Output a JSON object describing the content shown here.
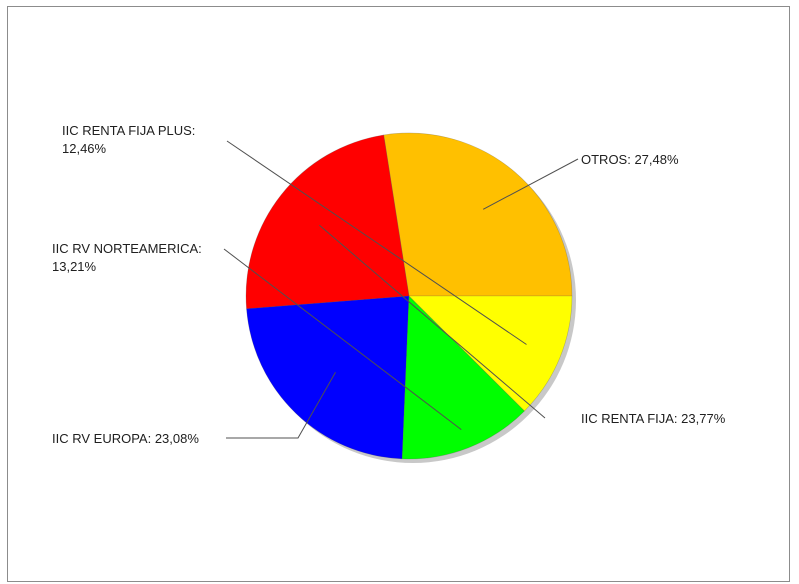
{
  "chart_data": {
    "type": "pie",
    "title": "",
    "slices": [
      {
        "name": "OTROS",
        "label_lines": [
          "OTROS: 27,48%"
        ],
        "value": 27.48,
        "color": "#FFC000"
      },
      {
        "name": "IIC RENTA FIJA",
        "label_lines": [
          "IIC RENTA FIJA: 23,77%"
        ],
        "value": 23.77,
        "color": "#FF0000"
      },
      {
        "name": "IIC RV EUROPA",
        "label_lines": [
          "IIC RV EUROPA: 23,08%"
        ],
        "value": 23.08,
        "color": "#0000FF"
      },
      {
        "name": "IIC RV NORTEAMERICA",
        "label_lines": [
          "IIC RV NORTEAMERICA:",
          "13,21%"
        ],
        "value": 13.21,
        "color": "#00FF00"
      },
      {
        "name": "IIC RENTA FIJA PLUS",
        "label_lines": [
          "IIC RENTA FIJA PLUS:",
          "12,46%"
        ],
        "value": 12.46,
        "color": "#FFFF00"
      }
    ],
    "legend": "none",
    "start_angle_deg": 0,
    "direction": "clockwise",
    "shadow": true
  }
}
